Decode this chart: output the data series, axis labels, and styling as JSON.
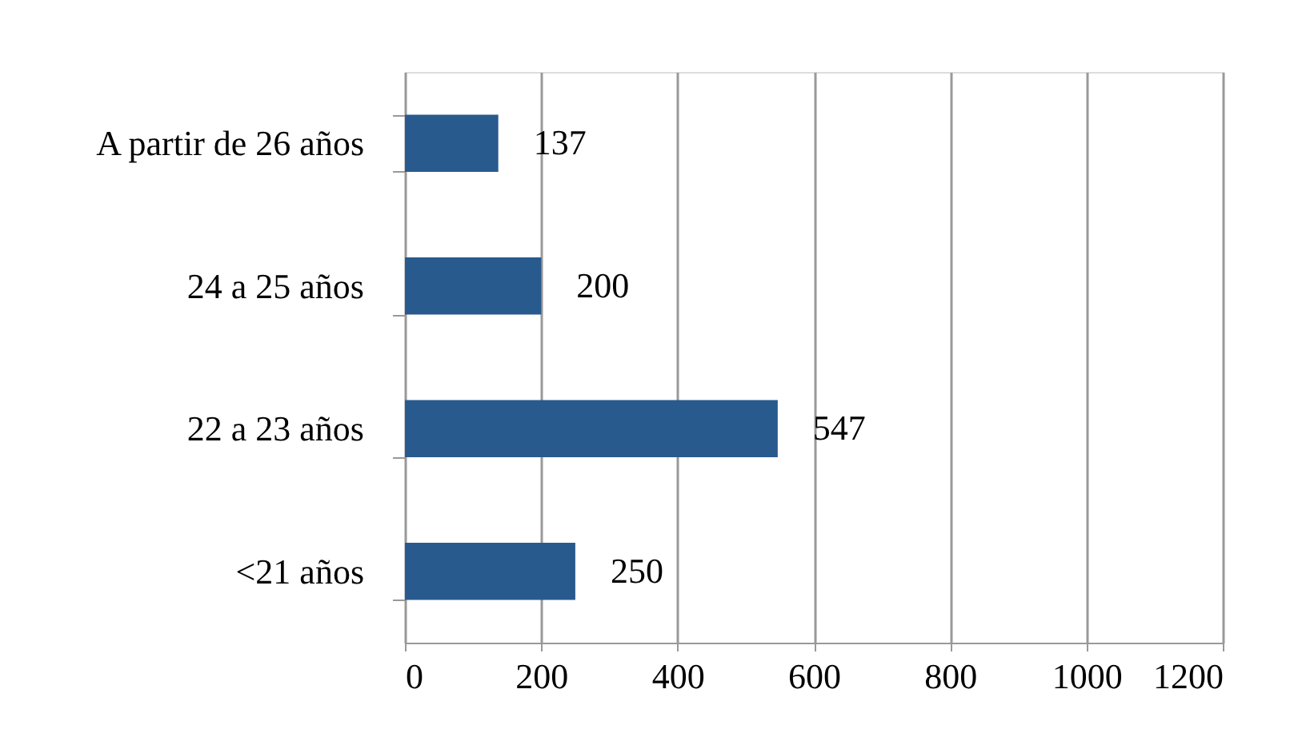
{
  "chart_data": {
    "type": "bar",
    "orientation": "horizontal",
    "categories": [
      "A partir de 26 años",
      "24 a 25 años",
      "22 a 23 años",
      "<21 años"
    ],
    "values": [
      137,
      200,
      547,
      250
    ],
    "color": "#285a8e",
    "xlim": [
      0,
      1200
    ],
    "xticks": [
      0,
      200,
      400,
      600,
      800,
      1000,
      1200
    ],
    "grid": "x",
    "data_labels": true
  }
}
